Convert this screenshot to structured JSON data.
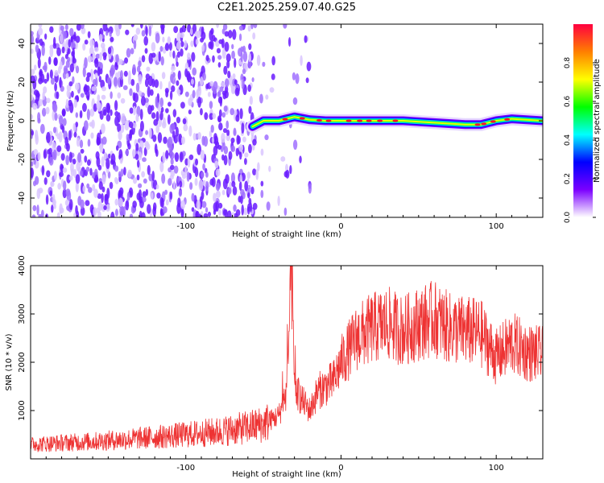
{
  "title": "C2E1.2025.259.07.40.G25",
  "chart_data": [
    {
      "type": "heatmap",
      "name": "spectrogram",
      "xlabel": "Height of straight line (km)",
      "ylabel": "Frequency (Hz)",
      "xlim": [
        -200,
        130
      ],
      "ylim": [
        -50,
        50
      ],
      "x_ticks": [
        "-100",
        "0",
        "100"
      ],
      "x_tick_values": [
        -100,
        0,
        100
      ],
      "y_ticks": [
        "-40",
        "-20",
        "0",
        "20",
        "40"
      ],
      "y_tick_values": [
        -40,
        -20,
        0,
        20,
        40
      ],
      "colorbar": {
        "label": "Normalized spectral amplitude",
        "ticks": [
          "0.0",
          "0.2",
          "0.4",
          "0.6",
          "0.8"
        ],
        "tick_values": [
          0,
          0.2,
          0.4,
          0.6,
          0.8
        ],
        "range": [
          0,
          1
        ],
        "colormap": [
          "#ffffff",
          "#7b00ff",
          "#0000ff",
          "#00ffff",
          "#00ff00",
          "#ffff00",
          "#ff7f00",
          "#ff0040"
        ]
      },
      "noise_region_x": [
        -200,
        -30
      ],
      "signal_track": {
        "x": [
          -57,
          -50,
          -40,
          -30,
          -20,
          -10,
          0,
          20,
          40,
          60,
          80,
          90,
          100,
          110,
          130
        ],
        "freq": [
          -3,
          0,
          0,
          2,
          0.5,
          0,
          0,
          0,
          0,
          -1,
          -2,
          -2,
          0,
          1,
          0
        ]
      },
      "grid": false
    },
    {
      "type": "line",
      "name": "snr",
      "xlabel": "Height of straight line (km)",
      "ylabel": "SNR (10 * v/v)",
      "xlim": [
        -200,
        130
      ],
      "ylim": [
        0,
        4000
      ],
      "x_ticks": [
        "-100",
        "0",
        "100"
      ],
      "x_tick_values": [
        -100,
        0,
        100
      ],
      "y_ticks": [
        "1000",
        "2000",
        "3000",
        "4000"
      ],
      "y_tick_values": [
        1000,
        2000,
        3000,
        4000
      ],
      "series": [
        {
          "color": "#ee3333",
          "x": [
            -200,
            -180,
            -160,
            -140,
            -120,
            -100,
            -80,
            -60,
            -50,
            -40,
            -35,
            -32,
            -30,
            -25,
            -20,
            -15,
            -10,
            -5,
            0,
            10,
            20,
            30,
            40,
            50,
            60,
            70,
            80,
            90,
            100,
            110,
            120,
            130
          ],
          "y": [
            300,
            330,
            360,
            400,
            450,
            500,
            560,
            650,
            720,
            900,
            1400,
            3900,
            1500,
            1200,
            1000,
            1400,
            1500,
            1600,
            2000,
            2500,
            2700,
            2800,
            2650,
            2800,
            2900,
            2700,
            2650,
            2600,
            2100,
            2400,
            2200,
            2150
          ]
        }
      ],
      "grid": false
    }
  ]
}
